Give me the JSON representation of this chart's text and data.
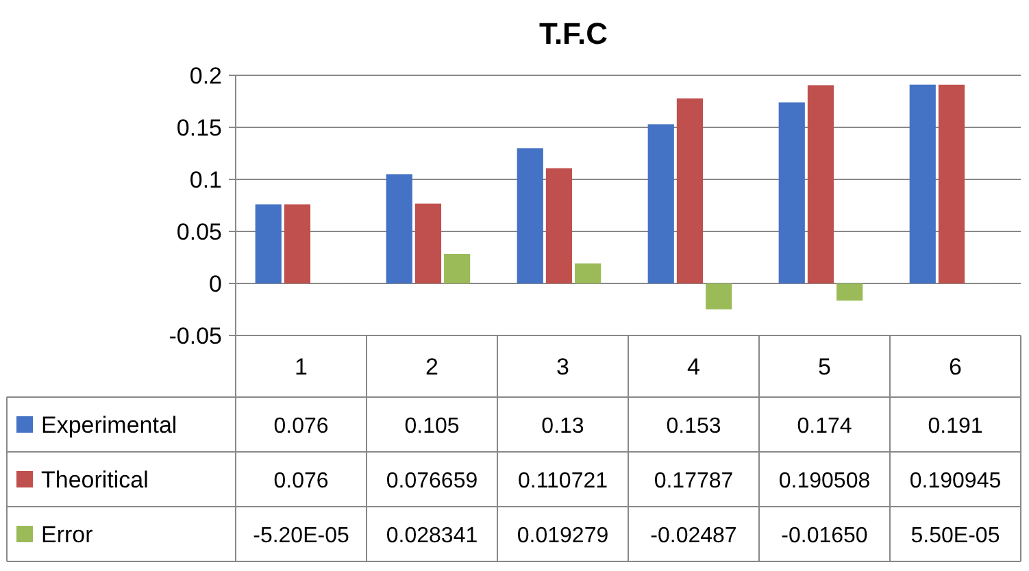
{
  "chart_data": {
    "type": "bar",
    "title": "T.F.C",
    "categories": [
      "1",
      "2",
      "3",
      "4",
      "5",
      "6"
    ],
    "series": [
      {
        "name": "Experimental",
        "color": "#4472c4",
        "values": [
          0.076,
          0.105,
          0.13,
          0.153,
          0.174,
          0.191
        ],
        "value_labels": [
          "0.076",
          "0.105",
          "0.13",
          "0.153",
          "0.174",
          "0.191"
        ]
      },
      {
        "name": "Theoritical",
        "color": "#c0504d",
        "values": [
          0.076,
          0.076659,
          0.110721,
          0.17787,
          0.190508,
          0.190945
        ],
        "value_labels": [
          "0.076",
          "0.076659",
          "0.110721",
          "0.17787",
          "0.190508",
          "0.190945"
        ]
      },
      {
        "name": "Error",
        "color": "#9bbb59",
        "values": [
          -5.2e-05,
          0.028341,
          0.019279,
          -0.02487,
          -0.0165,
          5.5e-05
        ],
        "value_labels": [
          "-5.20E-05",
          "0.028341",
          "0.019279",
          "-0.02487",
          "-0.01650",
          "5.50E-05"
        ]
      }
    ],
    "ylim": [
      -0.05,
      0.2
    ],
    "yticks": [
      -0.05,
      0,
      0.05,
      0.1,
      0.15,
      0.2
    ],
    "grid": "y",
    "legend": "bottom"
  }
}
